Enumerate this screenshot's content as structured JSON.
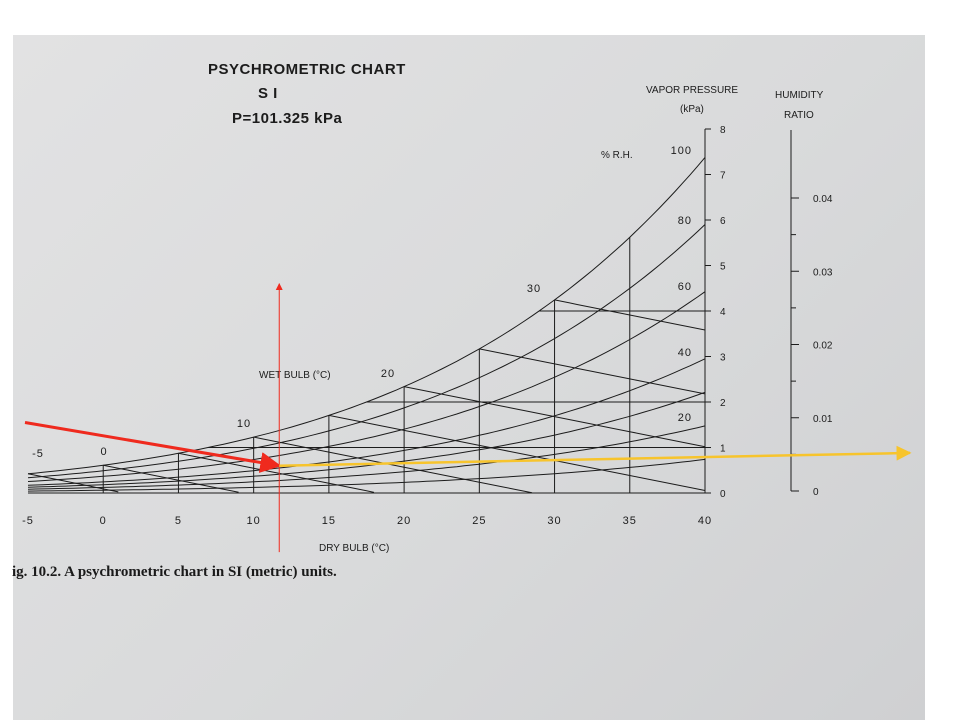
{
  "chart_data": {
    "type": "line",
    "title": "PSYCHROMETRIC CHART",
    "subtitle": "S I",
    "pressure_label": "P=101.325  kPa",
    "xlabel": "DRY BULB (°C)",
    "x_ticks": [
      "-5",
      "0",
      "5",
      "10",
      "15",
      "20",
      "25",
      "30",
      "35",
      "40"
    ],
    "xlim": [
      -5,
      40
    ],
    "vapor_pressure_label": [
      "VAPOR PRESSURE",
      "(kPa)"
    ],
    "vapor_pressure_ticks": [
      "0",
      "1",
      "2",
      "3",
      "4",
      "5",
      "6",
      "7",
      "8"
    ],
    "vapor_pressure_lim": [
      0,
      8
    ],
    "humidity_ratio_label": [
      "HUMIDITY",
      "RATIO"
    ],
    "humidity_ratio_ticks": [
      "0",
      "0.01",
      "0.02",
      "0.03",
      "0.04"
    ],
    "rh_label": "% R.H.",
    "rh_values": [
      "20",
      "40",
      "60",
      "80",
      "100"
    ],
    "wet_bulb_label": "WET BULB (°C)",
    "wet_bulb_values": [
      "-5",
      "0",
      "10",
      "20",
      "30"
    ],
    "series": [
      {
        "name": "100",
        "x": [
          -5,
          0,
          5,
          10,
          15,
          20,
          25,
          30,
          35,
          40
        ],
        "y": [
          0.42,
          0.61,
          0.87,
          1.23,
          1.71,
          2.34,
          3.17,
          4.25,
          5.63,
          7.38
        ]
      },
      {
        "name": "80",
        "x": [
          -5,
          0,
          5,
          10,
          15,
          20,
          25,
          30,
          35,
          40
        ],
        "y": [
          0.34,
          0.49,
          0.7,
          0.98,
          1.36,
          1.87,
          2.53,
          3.4,
          4.5,
          5.9
        ]
      },
      {
        "name": "60",
        "x": [
          -5,
          0,
          5,
          10,
          15,
          20,
          25,
          30,
          35,
          40
        ],
        "y": [
          0.25,
          0.37,
          0.52,
          0.74,
          1.02,
          1.4,
          1.9,
          2.55,
          3.38,
          4.43
        ]
      },
      {
        "name": "40",
        "x": [
          -5,
          0,
          5,
          10,
          15,
          20,
          25,
          30,
          35,
          40
        ],
        "y": [
          0.17,
          0.24,
          0.35,
          0.49,
          0.68,
          0.94,
          1.27,
          1.7,
          2.25,
          2.95
        ]
      },
      {
        "name": "20",
        "x": [
          -5,
          0,
          5,
          10,
          15,
          20,
          25,
          30,
          35,
          40
        ],
        "y": [
          0.08,
          0.12,
          0.17,
          0.25,
          0.34,
          0.47,
          0.63,
          0.85,
          1.13,
          1.48
        ]
      }
    ],
    "annotations": {
      "red_arrows": [
        {
          "from": [
            -5.2,
            1.55
          ],
          "to": [
            11.7,
            0.6
          ]
        },
        {
          "from": [
            11.7,
            -1.3
          ],
          "to": [
            11.7,
            4.6
          ]
        }
      ],
      "yellow_arrow": {
        "from": [
          11.7,
          0.6
        ],
        "to_humidity_ratio": 0.0052
      }
    },
    "caption": "ig. 10.2. A psychrometric chart in SI (metric) units.",
    "colors": {
      "annotation_red": "#ef2a1e",
      "annotation_yellow": "#f7c42c",
      "ink": "#1c1c1c"
    }
  }
}
